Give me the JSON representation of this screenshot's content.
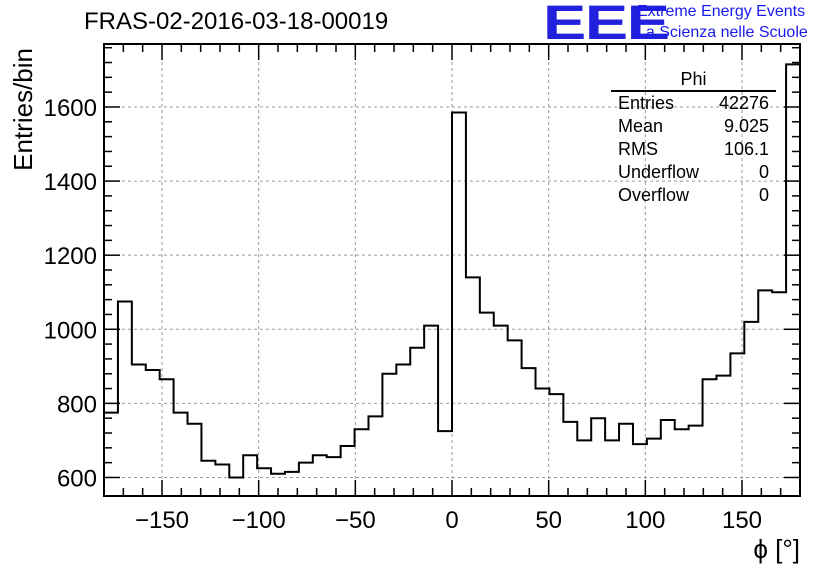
{
  "header": {
    "run_title": "FRAS-02-2016-03-18-00019",
    "logo_text": "EEE",
    "logo_line1": "Extreme Energy Events",
    "logo_line2": "La Scienza nelle Scuole"
  },
  "stats_box": {
    "title": "Phi",
    "rows": [
      {
        "label": "Entries",
        "value": "42276"
      },
      {
        "label": "Mean",
        "value": "9.025"
      },
      {
        "label": "RMS",
        "value": "106.1"
      },
      {
        "label": "Underflow",
        "value": "0"
      },
      {
        "label": "Overflow",
        "value": "0"
      }
    ]
  },
  "colors": {
    "logo": "#2020dd",
    "line": "#000000",
    "grid": "#9a9a9a"
  },
  "chart_data": {
    "type": "histogram",
    "title": "FRAS-02-2016-03-18-00019",
    "xlabel": "ϕ [°]",
    "ylabel": "Entries/bin",
    "xlim": [
      -180,
      180
    ],
    "ylim": [
      550,
      1770
    ],
    "grid": true,
    "bin_width": 7.2,
    "x_ticks": [
      -150,
      -100,
      -50,
      0,
      50,
      100,
      150
    ],
    "x_tick_labels": [
      "−150",
      "−100",
      "−50",
      "0",
      "50",
      "100",
      "150"
    ],
    "y_ticks": [
      600,
      800,
      1000,
      1200,
      1400,
      1600
    ],
    "y_tick_labels": [
      "600",
      "800",
      "1000",
      "1200",
      "1400",
      "1600"
    ],
    "bin_edges": [
      -180,
      -172.8,
      -165.6,
      -158.4,
      -151.2,
      -144,
      -136.8,
      -129.6,
      -122.4,
      -115.2,
      -108,
      -100.8,
      -93.6,
      -86.4,
      -79.2,
      -72,
      -64.8,
      -57.6,
      -50.4,
      -43.2,
      -36,
      -28.8,
      -21.6,
      -14.4,
      -7.2,
      0,
      7.2,
      14.4,
      21.6,
      28.8,
      36,
      43.2,
      50.4,
      57.6,
      64.8,
      72,
      79.2,
      86.4,
      93.6,
      100.8,
      108,
      115.2,
      122.4,
      129.6,
      136.8,
      144,
      151.2,
      158.4,
      165.6,
      172.8,
      180
    ],
    "values": [
      775,
      1075,
      905,
      890,
      865,
      775,
      745,
      645,
      635,
      600,
      660,
      625,
      610,
      615,
      640,
      660,
      655,
      685,
      730,
      765,
      880,
      905,
      950,
      1010,
      725,
      1585,
      1140,
      1045,
      1010,
      970,
      895,
      840,
      825,
      750,
      700,
      760,
      700,
      745,
      690,
      705,
      755,
      730,
      740,
      865,
      875,
      935,
      1020,
      1105,
      1100,
      1715
    ]
  }
}
